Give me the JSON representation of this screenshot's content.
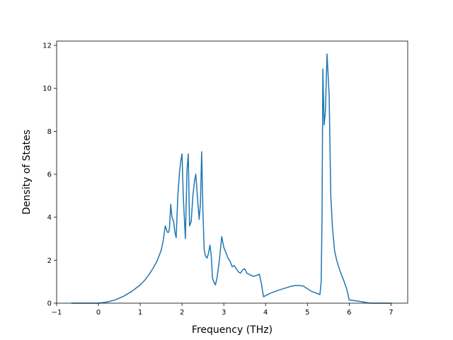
{
  "chart_data": {
    "type": "line",
    "title": "",
    "xlabel": "Frequency (THz)",
    "ylabel": "Density of States",
    "xlim": [
      -1.0,
      7.4
    ],
    "ylim": [
      0,
      12.2
    ],
    "xticks": [
      -1,
      0,
      1,
      2,
      3,
      4,
      5,
      6,
      7
    ],
    "xtick_labels": [
      "−1",
      "0",
      "1",
      "2",
      "3",
      "4",
      "5",
      "6",
      "7"
    ],
    "yticks": [
      0,
      2,
      4,
      6,
      8,
      10,
      12
    ],
    "ytick_labels": [
      "0",
      "2",
      "4",
      "6",
      "8",
      "10",
      "12"
    ],
    "grid": false,
    "line_color": "#1f77b4",
    "series": [
      {
        "x": [
          -0.65,
          -0.2,
          0.0,
          0.2,
          0.4,
          0.6,
          0.8,
          1.0,
          1.1,
          1.2,
          1.3,
          1.4,
          1.5,
          1.55,
          1.6,
          1.65,
          1.68,
          1.7,
          1.73,
          1.76,
          1.8,
          1.83,
          1.86,
          1.9,
          1.94,
          1.97,
          2.0,
          2.03,
          2.08,
          2.12,
          2.15,
          2.18,
          2.22,
          2.26,
          2.3,
          2.33,
          2.37,
          2.41,
          2.44,
          2.47,
          2.5,
          2.53,
          2.56,
          2.6,
          2.63,
          2.67,
          2.7,
          2.73,
          2.76,
          2.8,
          2.84,
          2.9,
          2.95,
          3.0,
          3.02,
          3.05,
          3.1,
          3.15,
          3.2,
          3.25,
          3.3,
          3.35,
          3.4,
          3.45,
          3.5,
          3.55,
          3.6,
          3.7,
          3.8,
          3.85,
          3.9,
          3.95,
          4.1,
          4.3,
          4.5,
          4.6,
          4.7,
          4.8,
          4.9,
          5.1,
          5.3,
          5.33,
          5.35,
          5.37,
          5.4,
          5.43,
          5.47,
          5.52,
          5.56,
          5.6,
          5.65,
          5.7,
          5.78,
          5.83,
          5.88,
          5.95,
          6.0,
          6.2,
          6.35,
          6.5,
          6.7,
          7.0
        ],
        "y": [
          0.0,
          0.0,
          0.0,
          0.05,
          0.15,
          0.32,
          0.55,
          0.85,
          1.05,
          1.3,
          1.6,
          1.95,
          2.45,
          2.9,
          3.6,
          3.3,
          3.3,
          3.5,
          4.6,
          4.0,
          3.8,
          3.3,
          3.05,
          5.0,
          6.1,
          6.6,
          6.95,
          5.0,
          3.0,
          6.2,
          6.95,
          3.6,
          3.8,
          5.0,
          5.7,
          6.0,
          4.9,
          3.9,
          4.6,
          7.05,
          4.3,
          2.5,
          2.2,
          2.1,
          2.3,
          2.7,
          2.2,
          1.15,
          1.0,
          0.85,
          1.2,
          2.1,
          3.1,
          2.6,
          2.5,
          2.35,
          2.1,
          1.95,
          1.7,
          1.75,
          1.6,
          1.45,
          1.4,
          1.55,
          1.6,
          1.4,
          1.35,
          1.25,
          1.3,
          1.35,
          0.9,
          0.3,
          0.45,
          0.6,
          0.72,
          0.78,
          0.82,
          0.82,
          0.8,
          0.55,
          0.4,
          1.0,
          3.9,
          10.9,
          8.3,
          8.9,
          11.6,
          9.7,
          5.0,
          3.5,
          2.45,
          2.0,
          1.5,
          1.25,
          1.0,
          0.6,
          0.15,
          0.1,
          0.05,
          0.0,
          0.0,
          0.0
        ]
      }
    ]
  }
}
